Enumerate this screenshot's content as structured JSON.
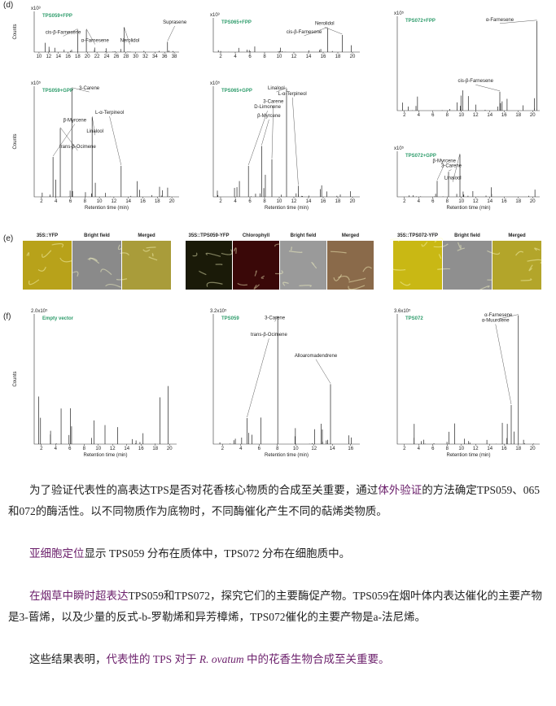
{
  "figure": {
    "panel_d": "(d)",
    "panel_e": "(e)",
    "panel_f": "(f)",
    "plots": [
      {
        "label": "TPS059+FPP",
        "scale": "x10³",
        "ylabel": "Counts",
        "xticks": [
          "10",
          "12",
          "14",
          "16",
          "18",
          "20",
          "22",
          "24",
          "26",
          "28",
          "30",
          "32",
          "34",
          "36",
          "38"
        ],
        "annotations": [
          "α-Farnesene",
          "cis-β-Farnesene",
          "Nerolidol",
          "Suprasene"
        ]
      },
      {
        "label": "TPS065+FPP",
        "scale": "x10³",
        "xticks": [
          "2",
          "4",
          "6",
          "8",
          "10",
          "12",
          "14",
          "16",
          "18",
          "20"
        ],
        "annotations": [
          "Nerolidol",
          "cis-β-Farnesene"
        ]
      },
      {
        "label": "TPS072+FPP",
        "scale": "x10⁵",
        "xticks": [
          "2",
          "4",
          "6",
          "8",
          "10",
          "12",
          "14",
          "16",
          "18",
          "20"
        ],
        "annotations": [
          "α-Farnesene",
          "cis-β-Farnesene"
        ]
      },
      {
        "label": "TPS059+GPP",
        "scale": "x10⁵",
        "ylabel": "Counts",
        "xlabel": "Retention time (min)",
        "xticks": [
          "2",
          "4",
          "6",
          "8",
          "10",
          "12",
          "14",
          "16",
          "18",
          "20"
        ],
        "annotations": [
          "3-Carene",
          "Linalool",
          "trans-β-Ocimene",
          "β-Myrcene",
          "L-α-Terpineol"
        ]
      },
      {
        "label": "TPS065+GPP",
        "scale": "x10⁵",
        "xlabel": "Retention time (min)",
        "xticks": [
          "2",
          "4",
          "6",
          "8",
          "10",
          "12",
          "14",
          "16",
          "18",
          "20"
        ],
        "annotations": [
          "Linalool",
          "β-Myrcene",
          "D-Limonene",
          "3-Carene",
          "L-α-Terpineol"
        ]
      },
      {
        "label": "TPS072+GPP",
        "scale": "x10⁵",
        "xlabel": "Retention time (min)",
        "xticks": [
          "2",
          "4",
          "6",
          "8",
          "10",
          "12",
          "14",
          "16",
          "18",
          "20"
        ],
        "annotations": [
          "Linalool",
          "3-Carene",
          "β-Myrcene"
        ]
      },
      {
        "label": "Empty vector",
        "scale": "2.0x10⁵",
        "ylabel": "Counts",
        "xlabel": "Retention time (min)",
        "xticks": [
          "2",
          "4",
          "6",
          "8",
          "10",
          "12",
          "14",
          "16",
          "18",
          "20"
        ],
        "annotations": []
      },
      {
        "label": "TPS059",
        "scale": "3.2x10⁵",
        "xlabel": "Retention time (min)",
        "xticks": [
          "2",
          "4",
          "6",
          "8",
          "10",
          "12",
          "14",
          "16"
        ],
        "annotations": [
          "3-Carene",
          "Alloaromadendrene",
          "trans-β-Ocimene"
        ]
      },
      {
        "label": "TPS072",
        "scale": "3.6x10⁵",
        "xlabel": "Retention time (min)",
        "xticks": [
          "2",
          "4",
          "6",
          "8",
          "10",
          "12",
          "14",
          "16",
          "18",
          "20"
        ],
        "annotations": [
          "α-Farnesene",
          "α-Muurolene"
        ]
      }
    ],
    "micrographs": [
      {
        "tiles": [
          {
            "label": "35S::YFP",
            "color": "#b8a21a"
          },
          {
            "label": "Bright field",
            "color": "#8a8a8a"
          },
          {
            "label": "Merged",
            "color": "#a99c3a"
          }
        ]
      },
      {
        "tiles": [
          {
            "label": "35S::TPS059-YFP",
            "color": "#1a1a08"
          },
          {
            "label": "Chlorophyll",
            "color": "#3a0808"
          },
          {
            "label": "Bright field",
            "color": "#9a9a9a"
          },
          {
            "label": "Merged",
            "color": "#8a6a4a"
          }
        ]
      },
      {
        "tiles": [
          {
            "label": "35S::TPS072-YFP",
            "color": "#c9b814"
          },
          {
            "label": "Bright field",
            "color": "#8f8f8f"
          },
          {
            "label": "Merged",
            "color": "#b3a52a"
          }
        ]
      }
    ]
  },
  "paragraphs": [
    [
      {
        "text": "为了验证代表性的高表达TPS是否对花香核心物质的合成至关重要，通过",
        "style": "plain"
      },
      {
        "text": "体外验证",
        "style": "highlight"
      },
      {
        "text": "的方法确定TPS059、065和072的酶活性。以不同物质作为底物时，不同酶催化产生不同的萜烯类物质。",
        "style": "plain"
      }
    ],
    [
      {
        "text": "亚细胞定位",
        "style": "highlight"
      },
      {
        "text": "显示  TPS059 分布在质体中，TPS072 分布在细胞质中。",
        "style": "plain"
      }
    ],
    [
      {
        "text": "在烟草中瞬时超表达",
        "style": "highlight"
      },
      {
        "text": "TPS059和TPS072，探究它们的主要酶促产物。TPS059在烟叶体内表达催化的主要产物是3-蒈烯，以及少量的反式-b-罗勒烯和异芳樟烯，TPS072催化的主要产物是a-法尼烯。",
        "style": "plain"
      }
    ],
    [
      {
        "text": "这些结果表明，",
        "style": "plain"
      },
      {
        "text": "代表性的 TPS 对于 ",
        "style": "highlight"
      },
      {
        "text": "R. ovatum",
        "style": "italic"
      },
      {
        "text": " 中的花香生物合成至关重要。",
        "style": "highlight"
      }
    ]
  ]
}
